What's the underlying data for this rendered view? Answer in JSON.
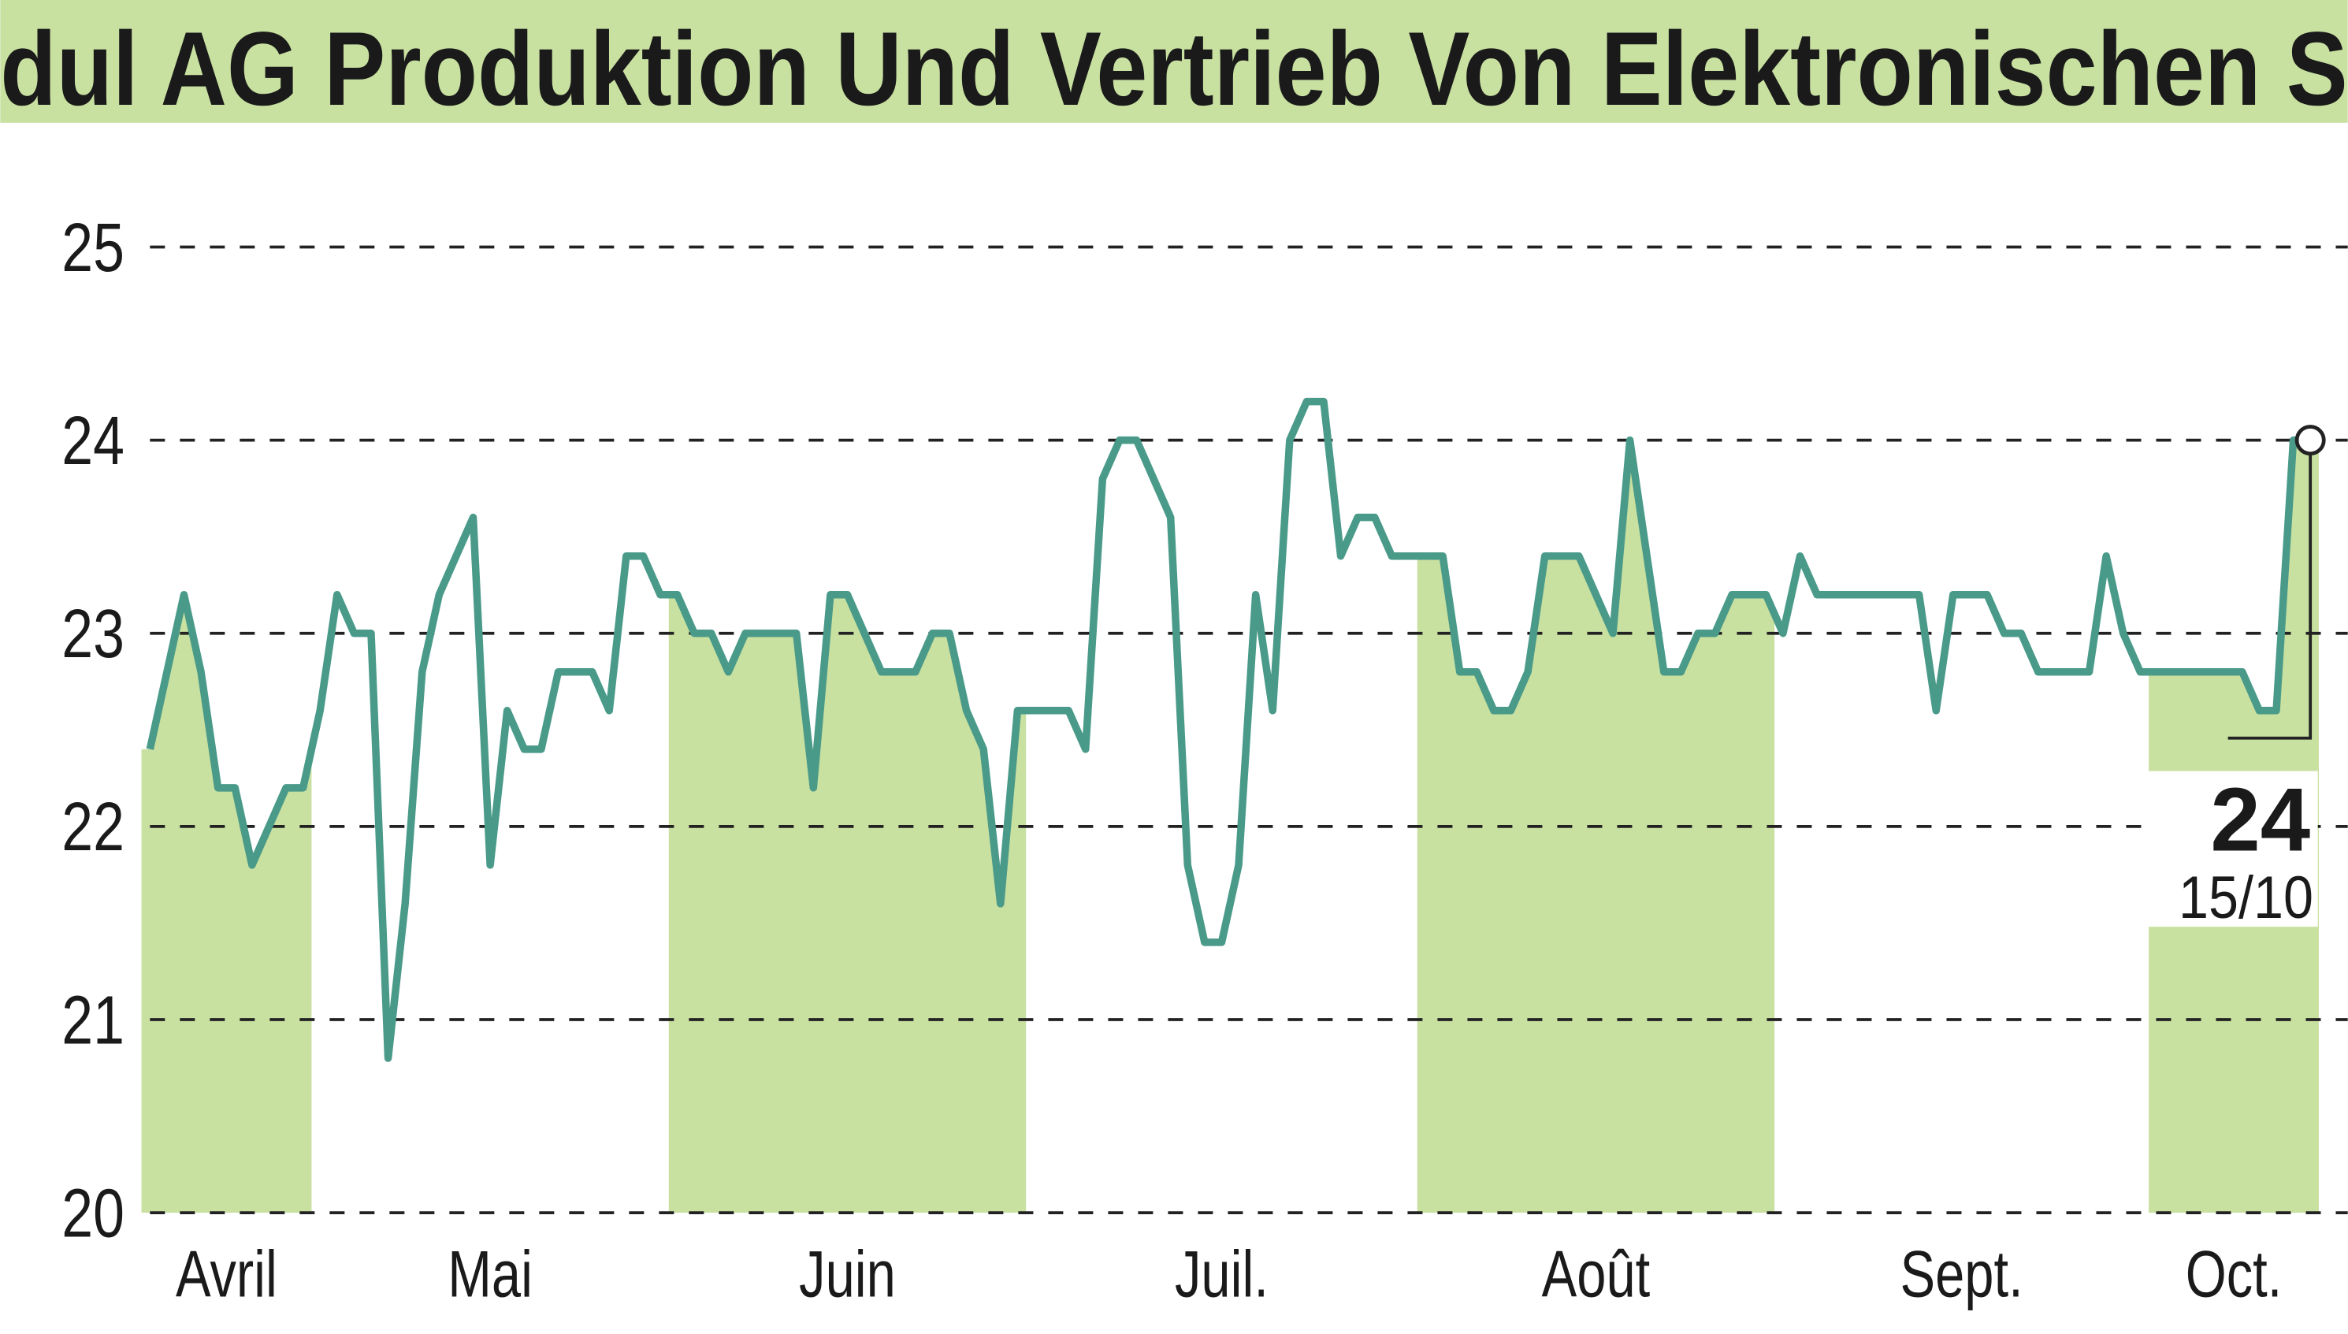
{
  "chart_data": {
    "type": "line",
    "title": "dul AG Produktion Und Vertrieb Von Elektronischen S",
    "categories": [
      "Avril",
      null,
      null,
      null,
      null,
      null,
      null,
      null,
      null,
      null,
      "Mai",
      null,
      null,
      null,
      null,
      null,
      null,
      null,
      null,
      null,
      null,
      null,
      null,
      null,
      null,
      null,
      null,
      null,
      null,
      null,
      null,
      "Juin",
      null,
      null,
      null,
      null,
      null,
      null,
      null,
      null,
      null,
      null,
      null,
      null,
      null,
      null,
      null,
      null,
      null,
      null,
      null,
      null,
      "Juil.",
      null,
      null,
      null,
      null,
      null,
      null,
      null,
      null,
      null,
      null,
      null,
      null,
      null,
      null,
      null,
      null,
      null,
      null,
      null,
      null,
      null,
      null,
      "Août",
      null,
      null,
      null,
      null,
      null,
      null,
      null,
      null,
      null,
      null,
      null,
      null,
      null,
      null,
      null,
      null,
      null,
      null,
      null,
      null,
      "Sept.",
      null,
      null,
      null,
      null,
      null,
      null,
      null,
      null,
      null,
      null,
      null,
      null,
      null,
      null,
      null,
      null,
      null,
      null,
      null,
      null,
      null,
      "Oct.",
      null,
      null,
      null,
      null,
      null,
      null,
      null,
      null,
      null
    ],
    "values": [
      22.4,
      22.8,
      23.2,
      22.8,
      22.2,
      22.2,
      21.8,
      22.0,
      22.2,
      22.2,
      22.6,
      23.2,
      23.0,
      23.0,
      20.8,
      21.6,
      22.8,
      23.2,
      23.4,
      23.6,
      21.8,
      22.6,
      22.4,
      22.4,
      22.8,
      22.8,
      22.8,
      22.6,
      23.4,
      23.4,
      23.2,
      23.2,
      23.0,
      23.0,
      22.8,
      23.0,
      23.0,
      23.0,
      23.0,
      22.2,
      23.2,
      23.2,
      23.0,
      22.8,
      22.8,
      22.8,
      23.0,
      23.0,
      22.6,
      22.4,
      21.6,
      22.6,
      22.6,
      22.6,
      22.6,
      22.4,
      23.8,
      24.0,
      24.0,
      23.8,
      23.6,
      21.8,
      21.4,
      21.4,
      21.8,
      23.2,
      22.6,
      24.0,
      24.2,
      24.2,
      23.4,
      23.6,
      23.6,
      23.4,
      23.4,
      23.4,
      23.4,
      22.8,
      22.8,
      22.6,
      22.6,
      22.8,
      23.4,
      23.4,
      23.4,
      23.2,
      23.0,
      24.0,
      23.4,
      22.8,
      22.8,
      23.0,
      23.0,
      23.2,
      23.2,
      23.2,
      23.0,
      23.4,
      23.2,
      23.2,
      23.2,
      23.2,
      23.2,
      23.2,
      23.2,
      22.6,
      23.2,
      23.2,
      23.2,
      23.0,
      23.0,
      22.8,
      22.8,
      22.8,
      22.8,
      23.4,
      23.0,
      22.8,
      22.8,
      22.8,
      22.8,
      22.8,
      22.8,
      22.8,
      22.6,
      22.6,
      24.0,
      24.0
    ],
    "color": "#4a9a8a",
    "band_color": "#c8e0a0",
    "ylim": [
      20,
      25
    ],
    "yticks": [
      20,
      21,
      22,
      23,
      24,
      25
    ],
    "grid": true,
    "annotation": {
      "value": "24",
      "date": "15/10"
    }
  }
}
